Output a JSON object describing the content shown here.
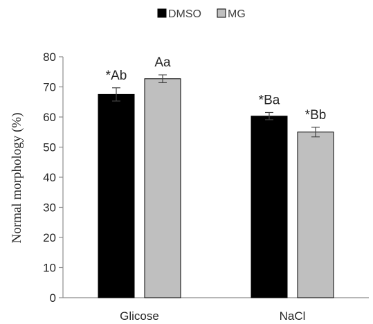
{
  "chart_data": {
    "type": "bar",
    "categories": [
      "Glicose",
      "NaCl"
    ],
    "series": [
      {
        "name": "DMSO",
        "values": [
          67.5,
          60.3
        ],
        "errors": [
          2.2,
          1.2
        ],
        "color": "#000000",
        "annotations": [
          "*Ab",
          "*Ba"
        ]
      },
      {
        "name": "MG",
        "values": [
          72.7,
          55.0
        ],
        "errors": [
          1.3,
          1.6
        ],
        "color": "#bfbfbf",
        "annotations": [
          "Aa",
          "*Bb"
        ]
      }
    ],
    "ylabel": "Normal morphology (%)",
    "xlabel": "",
    "ylim": [
      0,
      80
    ],
    "yticks": [
      0,
      10,
      20,
      30,
      40,
      50,
      60,
      70,
      80
    ],
    "grid": false,
    "legend": "top-center"
  }
}
